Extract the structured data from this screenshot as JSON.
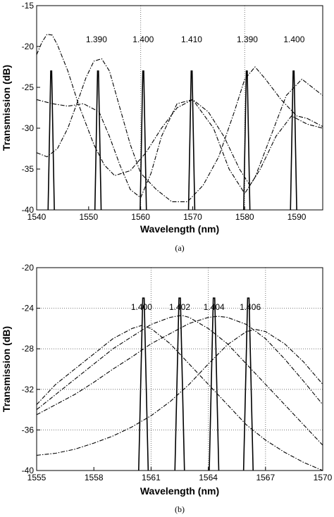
{
  "chart_data": [
    {
      "type": "line",
      "panel_label": "(a)",
      "xlabel": "Wavelength (nm)",
      "ylabel": "Transmission (dB)",
      "xlim": [
        1540,
        1595
      ],
      "ylim": [
        -40,
        -15
      ],
      "xticks": [
        1540,
        1550,
        1560,
        1570,
        1580,
        1590
      ],
      "yticks": [
        -15,
        -20,
        -25,
        -30,
        -35,
        -40
      ],
      "grid": "dotted vertical lines at 1560 and 1580",
      "peak_labels": [
        {
          "text": "1.390",
          "x": 1551.5
        },
        {
          "text": "1.400",
          "x": 1560.5
        },
        {
          "text": "1.410",
          "x": 1569.8
        },
        {
          "text": "1.390",
          "x": 1580.5
        },
        {
          "text": "1.400",
          "x": 1589.5
        }
      ],
      "series": [
        {
          "style": "solid",
          "shape": "narrow peaks",
          "peaks_x": [
            1542.8,
            1551.8,
            1560.5,
            1569.8,
            1580.4,
            1589.4
          ],
          "peak_y": -23,
          "base_y": -40,
          "halfwidth": 0.6
        },
        {
          "style": "dash-dot",
          "x": [
            1540,
            1541,
            1542,
            1543,
            1544,
            1546,
            1548,
            1551,
            1553,
            1555,
            1558,
            1561,
            1564,
            1567,
            1570,
            1573,
            1576,
            1579,
            1581,
            1583,
            1586,
            1589,
            1592,
            1595
          ],
          "y": [
            -21,
            -19.5,
            -18.5,
            -18.6,
            -19.8,
            -23,
            -27,
            -32,
            -34.5,
            -35.8,
            -35.2,
            -33,
            -30,
            -27.5,
            -26.5,
            -28,
            -31,
            -35,
            -37,
            -35,
            -31,
            -28.5,
            -29.5,
            -30
          ]
        },
        {
          "style": "dash-dot",
          "x": [
            1540,
            1542,
            1544,
            1546,
            1548,
            1549.5,
            1551,
            1552.5,
            1554,
            1556,
            1558,
            1560,
            1563,
            1566,
            1569,
            1572,
            1575,
            1578,
            1580,
            1582,
            1584,
            1587,
            1590,
            1592,
            1595
          ],
          "y": [
            -33,
            -33.5,
            -32.5,
            -30,
            -26.5,
            -23.8,
            -21.8,
            -21.5,
            -23,
            -27.5,
            -32,
            -35.5,
            -37.5,
            -39,
            -39,
            -37,
            -33.5,
            -28,
            -24,
            -22.5,
            -24,
            -26.5,
            -28.5,
            -28.8,
            -29.8
          ]
        },
        {
          "style": "dash-dot",
          "x": [
            1540,
            1543,
            1546,
            1549,
            1552,
            1554,
            1556,
            1558,
            1560,
            1562,
            1564,
            1567,
            1570,
            1574,
            1577,
            1580,
            1582,
            1585,
            1588,
            1591,
            1595
          ],
          "y": [
            -26.5,
            -27,
            -27.3,
            -27,
            -28,
            -31,
            -34.5,
            -37.5,
            -38.5,
            -35.5,
            -31,
            -27,
            -26.5,
            -30,
            -35,
            -38,
            -36,
            -31,
            -26,
            -24,
            -26
          ]
        }
      ]
    },
    {
      "type": "line",
      "panel_label": "(b)",
      "xlabel": "Wavelength (nm)",
      "ylabel": "Transmission (dB)",
      "xlim": [
        1555,
        1570
      ],
      "ylim": [
        -40,
        -20
      ],
      "xticks": [
        1555,
        1558,
        1561,
        1564,
        1567,
        1570
      ],
      "yticks": [
        -20,
        -24,
        -28,
        -32,
        -36,
        -40
      ],
      "grid": "dotted lines at x = 1561, 1564, 1567 and y = -24, -28, -32, -36",
      "peak_labels": [
        {
          "text": "1.400",
          "x": 1560.5
        },
        {
          "text": "1.402",
          "x": 1562.5
        },
        {
          "text": "1.404",
          "x": 1564.3
        },
        {
          "text": "1.406",
          "x": 1566.2
        }
      ],
      "series": [
        {
          "style": "solid",
          "shape": "narrow peaks",
          "peaks_x": [
            1560.6,
            1562.5,
            1564.3,
            1566.1
          ],
          "peak_y": -23,
          "base_y": -40,
          "halfwidth": 0.25
        },
        {
          "style": "dash-dot",
          "x": [
            1555,
            1556,
            1557,
            1558,
            1559,
            1560,
            1560.5,
            1561,
            1562,
            1563,
            1564,
            1565,
            1566,
            1567,
            1568,
            1569,
            1570
          ],
          "y": [
            -33.5,
            -31.5,
            -30,
            -28.5,
            -27,
            -26,
            -25.7,
            -26,
            -27.5,
            -29.5,
            -31.5,
            -33.5,
            -35.5,
            -37,
            -38.2,
            -39.2,
            -40
          ]
        },
        {
          "style": "dash-dot",
          "x": [
            1555,
            1556,
            1557,
            1558,
            1559,
            1560,
            1561,
            1562,
            1562.6,
            1563,
            1564,
            1565,
            1566,
            1567,
            1568,
            1569,
            1570
          ],
          "y": [
            -34,
            -32.5,
            -31,
            -29.5,
            -28,
            -26.8,
            -25.6,
            -24.9,
            -24.7,
            -24.9,
            -26,
            -27.5,
            -29.5,
            -31.5,
            -33.5,
            -35.5,
            -37.5
          ]
        },
        {
          "style": "dash-dot",
          "x": [
            1555,
            1556,
            1557,
            1558,
            1559,
            1560,
            1561,
            1562,
            1563,
            1564,
            1564.5,
            1565,
            1566,
            1567,
            1568,
            1569,
            1570
          ],
          "y": [
            -34.5,
            -33.5,
            -32.5,
            -31.3,
            -30,
            -28.8,
            -27.5,
            -26.5,
            -25.5,
            -24.9,
            -24.8,
            -24.9,
            -25.6,
            -27,
            -29,
            -31.2,
            -33.5
          ]
        },
        {
          "style": "dash-dot",
          "x": [
            1555,
            1556,
            1557,
            1558,
            1559,
            1560,
            1561,
            1562,
            1563,
            1564,
            1565,
            1566,
            1566.5,
            1567,
            1568,
            1569,
            1570
          ],
          "y": [
            -38.5,
            -38.3,
            -37.9,
            -37.3,
            -36.6,
            -35.7,
            -34.6,
            -33.2,
            -31.5,
            -29.5,
            -27.6,
            -26.3,
            -26.1,
            -26.3,
            -27.5,
            -29.3,
            -31.5
          ]
        }
      ]
    }
  ]
}
